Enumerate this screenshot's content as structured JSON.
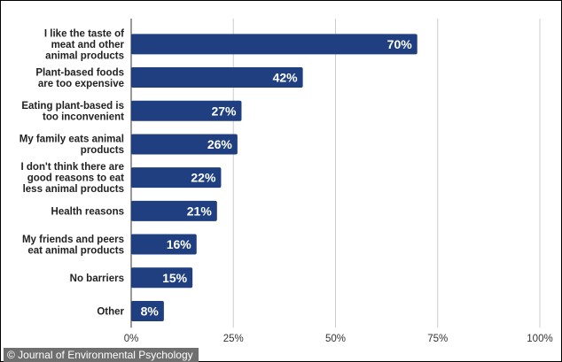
{
  "chart_data": {
    "type": "bar",
    "orientation": "horizontal",
    "categories": [
      [
        "I like the taste of",
        "meat and other",
        "animal products"
      ],
      [
        "Plant-based foods",
        "are too expensive"
      ],
      [
        "Eating plant-based is",
        "too inconvenient"
      ],
      [
        "My family eats animal",
        "products"
      ],
      [
        "I don't think there are",
        "good reasons to eat",
        "less animal products"
      ],
      [
        "Health reasons"
      ],
      [
        "My friends and peers",
        "eat animal products"
      ],
      [
        "No barriers"
      ],
      [
        "Other"
      ]
    ],
    "values": [
      70,
      42,
      27,
      26,
      22,
      21,
      16,
      15,
      8
    ],
    "data_labels": [
      "70%",
      "42%",
      "27%",
      "26%",
      "22%",
      "21%",
      "16%",
      "15%",
      "8%"
    ],
    "xlim": [
      0,
      100
    ],
    "x_ticks": [
      0,
      25,
      50,
      75,
      100
    ],
    "x_tick_labels": [
      "0%",
      "25%",
      "50%",
      "75%",
      "100%"
    ],
    "grid": true,
    "bar_color": "#1f3f80",
    "grid_color": "#cccccc"
  },
  "source": {
    "icon": "copyright-icon",
    "text": "© Journal of Environmental Psychology"
  }
}
